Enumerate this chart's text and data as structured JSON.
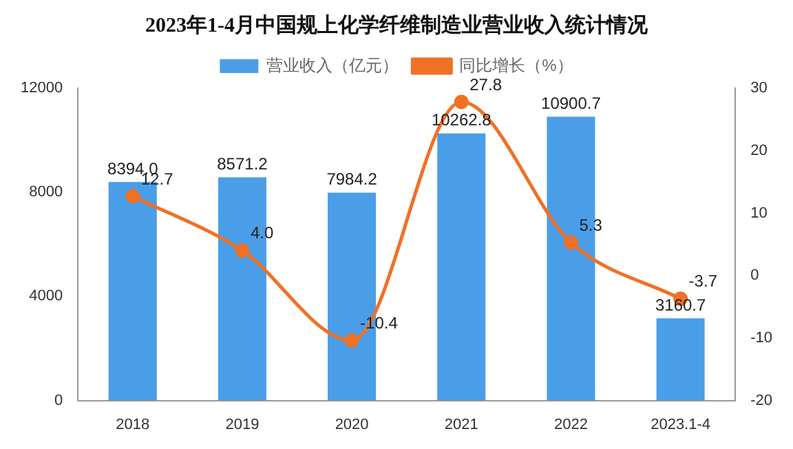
{
  "chart_data": {
    "type": "bar",
    "title": "2023年1-4月中国规上化学纤维制造业营业收入统计情况",
    "categories": [
      "2018",
      "2019",
      "2020",
      "2021",
      "2022",
      "2023.1-4"
    ],
    "series": [
      {
        "name": "营业收入（亿元）",
        "color": "#4a9ee8",
        "values": [
          8394.0,
          8571.2,
          7984.2,
          10262.8,
          10900.7,
          3160.7
        ],
        "value_labels": [
          "8394.0",
          "8571.2",
          "7984.2",
          "10262.8",
          "10900.7",
          "3160.7"
        ]
      },
      {
        "name": "同比增长（%）",
        "type": "line",
        "axis": "y2",
        "color": "#f07125",
        "values": [
          12.7,
          4.0,
          -10.4,
          27.8,
          5.3,
          -3.7
        ],
        "value_labels": [
          "12.7",
          "4.0",
          "-10.4",
          "27.8",
          "5.3",
          "-3.7"
        ]
      }
    ],
    "ylim": [
      0,
      12000
    ],
    "yticks": [
      0,
      4000,
      8000,
      12000
    ],
    "y2lim": [
      -20,
      30
    ],
    "y2ticks": [
      -20,
      -10,
      0,
      10,
      20,
      30
    ],
    "legend": "top",
    "marker": "circle"
  }
}
